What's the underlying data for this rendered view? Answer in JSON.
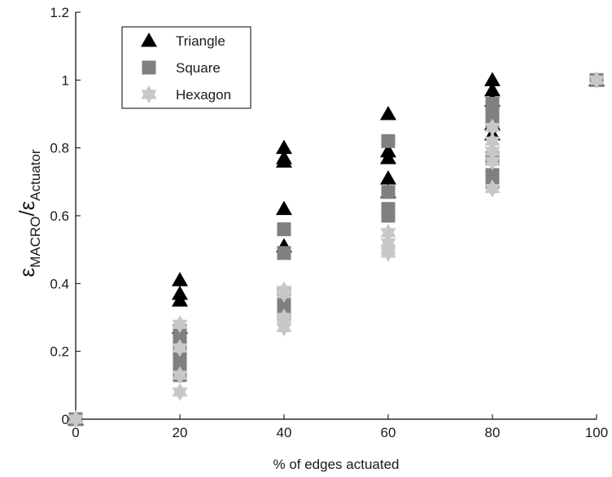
{
  "chart_data": {
    "type": "scatter",
    "xlabel": "% of edges actuated",
    "ylabel": {
      "symbol": "ε",
      "numerator_sub": "MACRO",
      "separator": "/",
      "denominator_sub": "Actuator"
    },
    "xlim": [
      0,
      100
    ],
    "ylim": [
      0,
      1.2
    ],
    "x_ticks": [
      "0",
      "20",
      "40",
      "60",
      "80",
      "100"
    ],
    "y_ticks": [
      "0",
      "0.2",
      "0.4",
      "0.6",
      "0.8",
      "1",
      "1.2"
    ],
    "grid": false,
    "legend_position": "top-left",
    "series": [
      {
        "name": "Triangle",
        "marker": "triangle",
        "color": "#000000",
        "points": [
          [
            0,
            0
          ],
          [
            20,
            0.41
          ],
          [
            20,
            0.37
          ],
          [
            20,
            0.35
          ],
          [
            20,
            0.27
          ],
          [
            40,
            0.8
          ],
          [
            40,
            0.77
          ],
          [
            40,
            0.76
          ],
          [
            40,
            0.62
          ],
          [
            40,
            0.51
          ],
          [
            60,
            0.9
          ],
          [
            60,
            0.79
          ],
          [
            60,
            0.77
          ],
          [
            60,
            0.71
          ],
          [
            60,
            0.67
          ],
          [
            80,
            1.0
          ],
          [
            80,
            0.97
          ],
          [
            80,
            0.94
          ],
          [
            80,
            0.87
          ],
          [
            80,
            0.84
          ],
          [
            100,
            1.0
          ]
        ]
      },
      {
        "name": "Square",
        "marker": "square",
        "color": "#808080",
        "points": [
          [
            0,
            0
          ],
          [
            20,
            0.26
          ],
          [
            20,
            0.23
          ],
          [
            20,
            0.2
          ],
          [
            20,
            0.17
          ],
          [
            20,
            0.13
          ],
          [
            40,
            0.56
          ],
          [
            40,
            0.49
          ],
          [
            40,
            0.37
          ],
          [
            40,
            0.34
          ],
          [
            40,
            0.31
          ],
          [
            60,
            0.82
          ],
          [
            60,
            0.67
          ],
          [
            60,
            0.62
          ],
          [
            60,
            0.6
          ],
          [
            80,
            0.93
          ],
          [
            80,
            0.91
          ],
          [
            80,
            0.88
          ],
          [
            80,
            0.77
          ],
          [
            80,
            0.72
          ],
          [
            80,
            0.7
          ],
          [
            100,
            1.0
          ]
        ]
      },
      {
        "name": "Hexagon",
        "marker": "star",
        "color": "#c8c8c8",
        "points": [
          [
            0,
            0
          ],
          [
            20,
            0.28
          ],
          [
            20,
            0.21
          ],
          [
            20,
            0.13
          ],
          [
            20,
            0.08
          ],
          [
            40,
            0.38
          ],
          [
            40,
            0.37
          ],
          [
            40,
            0.3
          ],
          [
            40,
            0.29
          ],
          [
            40,
            0.27
          ],
          [
            60,
            0.55
          ],
          [
            60,
            0.52
          ],
          [
            60,
            0.5
          ],
          [
            60,
            0.49
          ],
          [
            80,
            0.86
          ],
          [
            80,
            0.82
          ],
          [
            80,
            0.79
          ],
          [
            80,
            0.76
          ],
          [
            80,
            0.68
          ],
          [
            100,
            1.0
          ]
        ]
      }
    ]
  }
}
